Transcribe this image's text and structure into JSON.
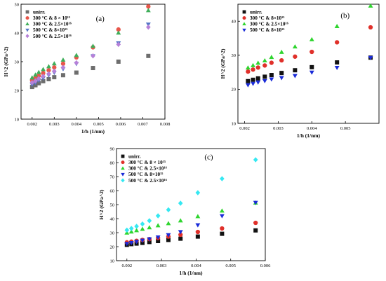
{
  "chart_data": [
    {
      "type": "scatter",
      "panel_label": "(a)",
      "xlabel": "1/h (1/nm)",
      "ylabel": "H^2 (GPa^2)",
      "xlim": [
        0.0015,
        0.008
      ],
      "ylim": [
        10,
        50
      ],
      "xticks": [
        "0.002",
        "0.003",
        "0.004",
        "0.005",
        "0.006",
        "0.007",
        "0.008"
      ],
      "yticks": [
        "10",
        "20",
        "30",
        "40",
        "50"
      ],
      "legend_position": "top-left",
      "series": [
        {
          "name": "unirr.",
          "color": "#6d6d6d",
          "marker": "square",
          "x": [
            0.002,
            0.00215,
            0.0023,
            0.0025,
            0.00275,
            0.003,
            0.0034,
            0.004,
            0.00475,
            0.0059,
            0.00725
          ],
          "y": [
            21.2,
            21.8,
            22.5,
            23.2,
            23.9,
            24.6,
            25.3,
            26.2,
            27.8,
            30.0,
            32.0
          ]
        },
        {
          "name": "300 °C & 8 × 10¹⁵",
          "color": "#e8564a",
          "marker": "circle",
          "x": [
            0.002,
            0.00215,
            0.0023,
            0.0025,
            0.00275,
            0.003,
            0.0034,
            0.004,
            0.00475,
            0.0059,
            0.00725
          ],
          "y": [
            23.5,
            24.3,
            25.1,
            26.0,
            27.0,
            28.0,
            29.3,
            31.5,
            35.0,
            41.2,
            49.2
          ]
        },
        {
          "name": "300 °C & 2.5×10¹⁶",
          "color": "#3fae5a",
          "marker": "triangle-up",
          "x": [
            0.002,
            0.00215,
            0.0023,
            0.0025,
            0.00275,
            0.003,
            0.0034,
            0.004,
            0.00475,
            0.0059,
            0.00725
          ],
          "y": [
            24.4,
            25.4,
            26.3,
            27.3,
            28.3,
            29.3,
            30.6,
            32.2,
            35.4,
            40.0,
            47.8
          ]
        },
        {
          "name": "500 °C & 8×10¹⁵",
          "color": "#5577c7",
          "marker": "triangle-down",
          "x": [
            0.002,
            0.00215,
            0.0023,
            0.0025,
            0.00275,
            0.003,
            0.0034,
            0.004,
            0.00475,
            0.0059,
            0.00725
          ],
          "y": [
            22.1,
            22.7,
            23.5,
            24.3,
            25.3,
            26.2,
            27.5,
            29.3,
            32.0,
            36.5,
            43.0
          ]
        },
        {
          "name": "500 °C & 2.5×10¹⁶",
          "color": "#b680d8",
          "marker": "diamond",
          "x": [
            0.002,
            0.00215,
            0.0023,
            0.0025,
            0.00275,
            0.003,
            0.0034,
            0.004,
            0.00475,
            0.0059,
            0.00725
          ],
          "y": [
            22.7,
            23.3,
            24.1,
            24.9,
            25.8,
            26.7,
            28.0,
            29.6,
            32.0,
            36.0,
            42.0
          ]
        }
      ]
    },
    {
      "type": "scatter",
      "panel_label": "(b)",
      "xlabel": "1/h (1/nm)",
      "ylabel": "H^2 (GPa^2)",
      "xlim": [
        0.0018,
        0.006
      ],
      "ylim": [
        10,
        45
      ],
      "xticks": [
        "0.002",
        "0.003",
        "0.004",
        "0.005"
      ],
      "yticks": [
        "10",
        "20",
        "30",
        "40"
      ],
      "legend_position": "top-left",
      "series": [
        {
          "name": "unirr.",
          "color": "#111111",
          "marker": "square",
          "x": [
            0.0021,
            0.00225,
            0.0024,
            0.0026,
            0.0028,
            0.0031,
            0.0035,
            0.004,
            0.00475,
            0.00575
          ],
          "y": [
            22.4,
            22.8,
            23.2,
            23.7,
            24.2,
            24.8,
            25.6,
            26.5,
            27.9,
            29.3
          ]
        },
        {
          "name": "300 °C & 8×10¹⁵",
          "color": "#e0302a",
          "marker": "circle",
          "x": [
            0.0021,
            0.00225,
            0.0024,
            0.0026,
            0.0028,
            0.0031,
            0.0035,
            0.004,
            0.00475,
            0.00575
          ],
          "y": [
            25.2,
            25.8,
            26.4,
            27.0,
            27.8,
            28.5,
            29.6,
            31.0,
            33.8,
            38.2
          ]
        },
        {
          "name": "300 °C & 2.5×10¹⁶",
          "color": "#2fd52f",
          "marker": "triangle-up",
          "x": [
            0.0021,
            0.00225,
            0.0024,
            0.0026,
            0.0028,
            0.0031,
            0.0035,
            0.004,
            0.00475,
            0.00575
          ],
          "y": [
            26.3,
            27.0,
            27.7,
            28.4,
            29.4,
            30.9,
            32.5,
            34.6,
            38.5,
            44.5
          ]
        },
        {
          "name": "500 °C & 8×10¹⁵",
          "color": "#1a2bd8",
          "marker": "triangle-down",
          "x": [
            0.0021,
            0.00225,
            0.0024,
            0.0026,
            0.0028,
            0.0031,
            0.0035,
            0.004,
            0.00475,
            0.00575
          ],
          "y": [
            21.3,
            21.7,
            22.1,
            22.5,
            23.0,
            23.4,
            24.0,
            25.0,
            26.4,
            29.3
          ]
        }
      ]
    },
    {
      "type": "scatter",
      "panel_label": "(c)",
      "xlabel": "1/h (1/nm)",
      "ylabel": "H^2 (GPa^2)",
      "xlim": [
        0.0017,
        0.006
      ],
      "ylim": [
        10,
        90
      ],
      "xticks": [
        "0.002",
        "0.003",
        "0.004",
        "0.005",
        "0.006"
      ],
      "yticks": [
        "10",
        "20",
        "30",
        "40",
        "50",
        "60",
        "70",
        "80",
        "90"
      ],
      "legend_position": "top-left",
      "series": [
        {
          "name": "unirr.",
          "color": "#111111",
          "marker": "square",
          "x": [
            0.002,
            0.00213,
            0.00228,
            0.00245,
            0.00265,
            0.0029,
            0.0032,
            0.00355,
            0.00405,
            0.00475,
            0.00572
          ],
          "y": [
            21.3,
            21.8,
            22.2,
            22.7,
            23.3,
            24.0,
            24.8,
            25.7,
            27.2,
            29.2,
            31.6
          ]
        },
        {
          "name": "300 °C & 8 × 10¹⁵",
          "color": "#e0302a",
          "marker": "circle",
          "x": [
            0.002,
            0.00213,
            0.00228,
            0.00245,
            0.00265,
            0.0029,
            0.0032,
            0.00355,
            0.00405,
            0.00475,
            0.00572
          ],
          "y": [
            23.1,
            23.6,
            24.2,
            24.8,
            25.4,
            26.2,
            27.2,
            28.5,
            30.5,
            33.0,
            37.0
          ]
        },
        {
          "name": "300 °C & 2.5×10¹⁶",
          "color": "#2fd52f",
          "marker": "triangle-up",
          "x": [
            0.002,
            0.00213,
            0.00228,
            0.00245,
            0.00265,
            0.0029,
            0.0032,
            0.00355,
            0.00405,
            0.00475,
            0.00572
          ],
          "y": [
            29.8,
            30.6,
            31.5,
            32.5,
            33.6,
            35.0,
            36.5,
            38.5,
            41.5,
            45.5,
            51.2
          ]
        },
        {
          "name": "500 °C & 8×10¹⁵",
          "color": "#1a2bd8",
          "marker": "triangle-down",
          "x": [
            0.002,
            0.00213,
            0.00228,
            0.00245,
            0.00265,
            0.0029,
            0.0032,
            0.00355,
            0.00405,
            0.00475,
            0.00572
          ],
          "y": [
            22.2,
            22.8,
            23.6,
            24.5,
            25.5,
            26.8,
            28.4,
            30.6,
            35.5,
            42.0,
            51.5
          ]
        },
        {
          "name": "500 °C & 2.5×10¹⁶",
          "color": "#35e8f2",
          "marker": "diamond",
          "x": [
            0.002,
            0.00213,
            0.00228,
            0.00245,
            0.00265,
            0.0029,
            0.0032,
            0.00355,
            0.00405,
            0.00475,
            0.00572
          ],
          "y": [
            31.8,
            33.0,
            34.5,
            36.2,
            38.5,
            42.0,
            46.3,
            51.0,
            58.5,
            68.5,
            82.0
          ]
        }
      ]
    }
  ]
}
